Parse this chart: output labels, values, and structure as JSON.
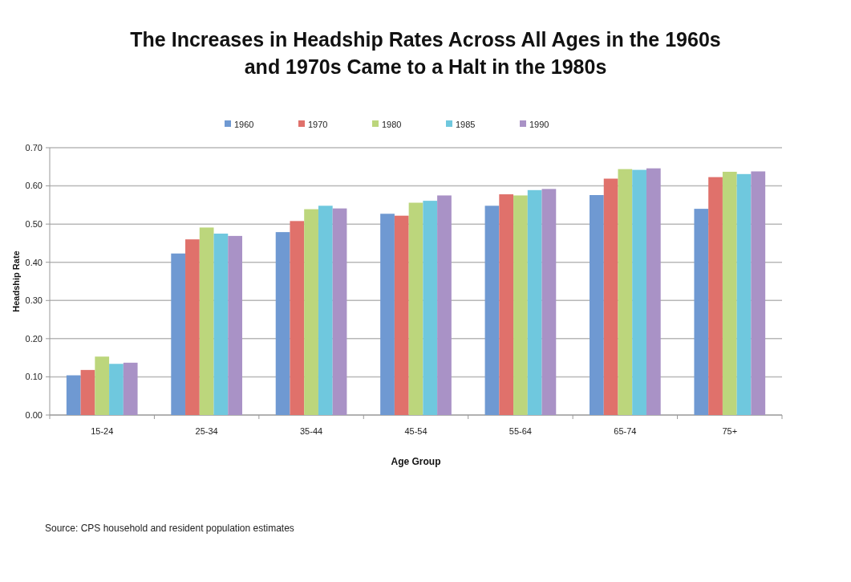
{
  "chart_data": {
    "type": "bar",
    "title": "The Increases in Headship Rates Across All Ages in the 1960s\nand 1970s Came to a Halt in the 1980s",
    "xlabel": "Age Group",
    "ylabel": "Headship Rate",
    "categories": [
      "15-24",
      "25-34",
      "35-44",
      "45-54",
      "55-64",
      "65-74",
      "75+"
    ],
    "series": [
      {
        "name": "1960",
        "color": "#6f99d2",
        "values": [
          0.104,
          0.423,
          0.479,
          0.527,
          0.548,
          0.576,
          0.54
        ]
      },
      {
        "name": "1970",
        "color": "#e0716b",
        "values": [
          0.118,
          0.46,
          0.508,
          0.522,
          0.578,
          0.619,
          0.623
        ]
      },
      {
        "name": "1980",
        "color": "#bcd67c",
        "values": [
          0.153,
          0.491,
          0.539,
          0.556,
          0.575,
          0.644,
          0.637
        ]
      },
      {
        "name": "1985",
        "color": "#6fc8de",
        "values": [
          0.134,
          0.475,
          0.548,
          0.561,
          0.589,
          0.642,
          0.631
        ]
      },
      {
        "name": "1990",
        "color": "#a992c6",
        "values": [
          0.137,
          0.469,
          0.541,
          0.575,
          0.592,
          0.646,
          0.638
        ]
      }
    ],
    "ylim": [
      0,
      0.7
    ],
    "yticks": [
      {
        "value": 0,
        "label": "0.00"
      },
      {
        "value": 0.1,
        "label": "0.10"
      },
      {
        "value": 0.2,
        "label": "0.20"
      },
      {
        "value": 0.3,
        "label": "0.30"
      },
      {
        "value": 0.4,
        "label": "0.40"
      },
      {
        "value": 0.5,
        "label": "0.50"
      },
      {
        "value": 0.6,
        "label": "0.60"
      },
      {
        "value": 0.7,
        "label": "0.70"
      }
    ],
    "grid": "y",
    "legend": "top",
    "annotations": [
      "Source: CPS household and resident population estimates"
    ]
  }
}
